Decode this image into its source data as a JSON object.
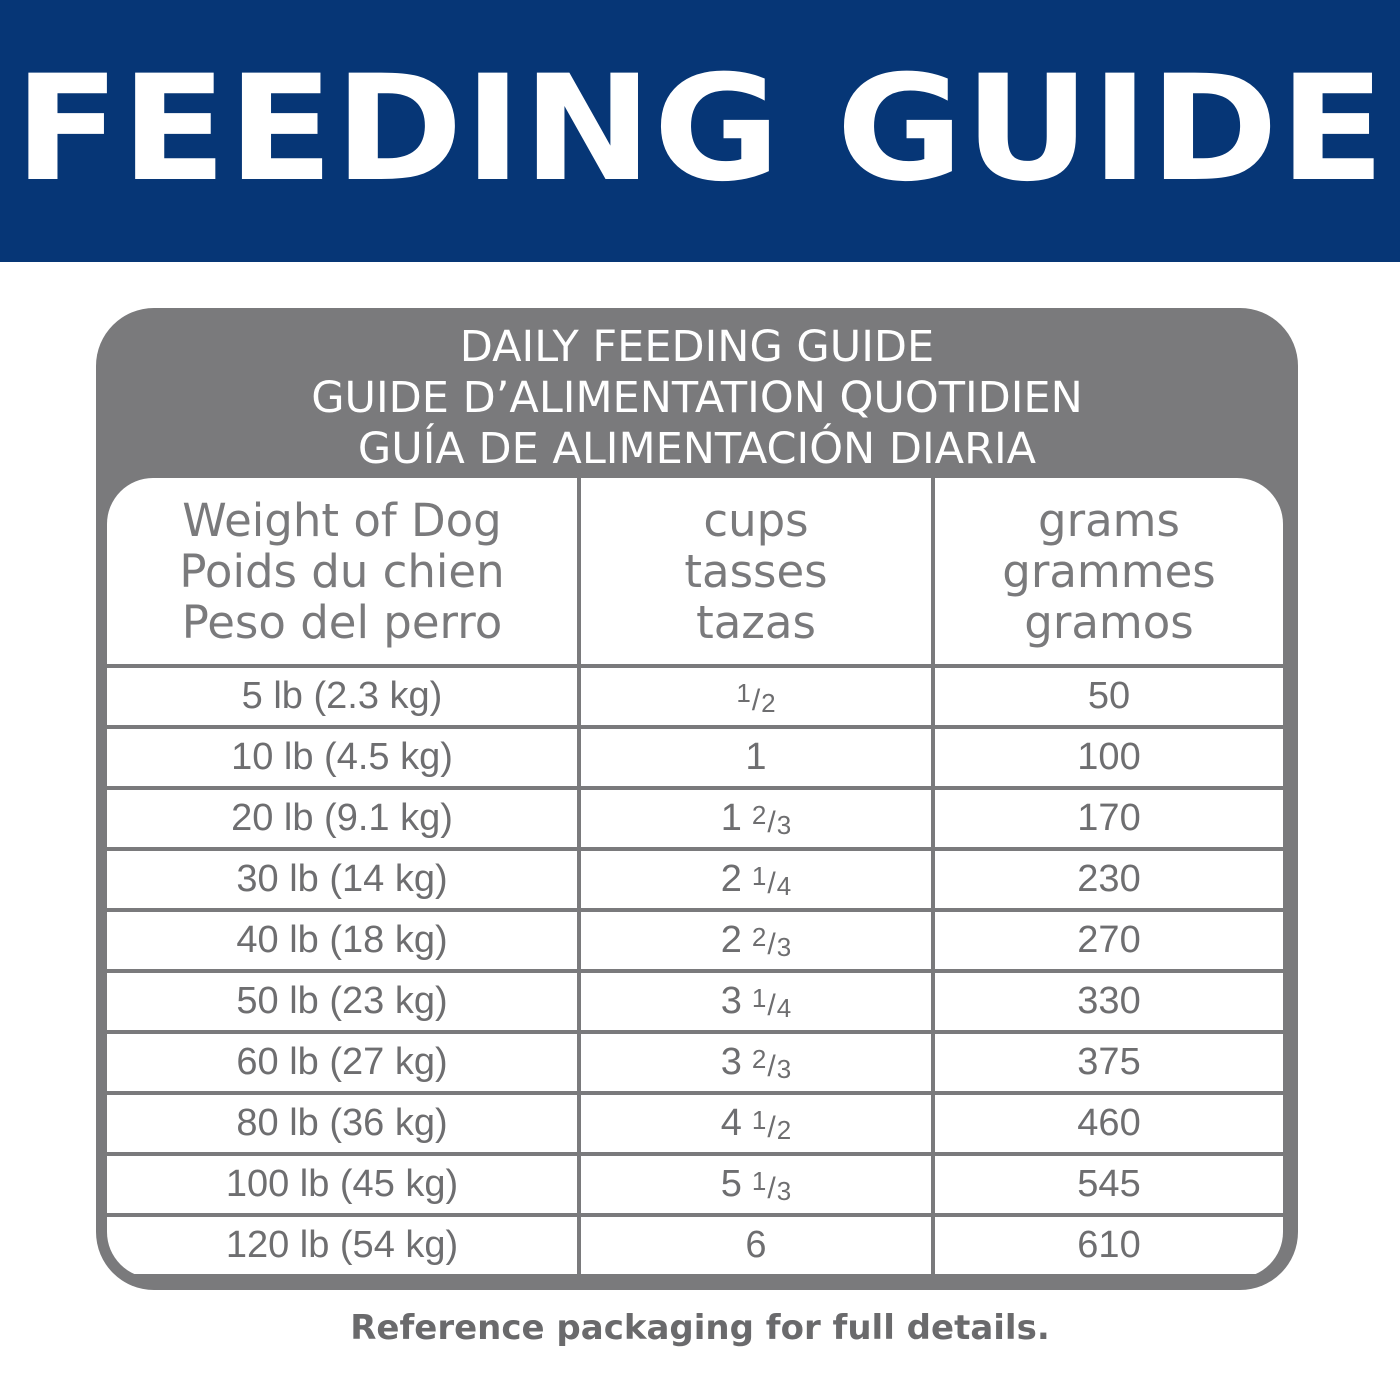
{
  "banner": {
    "title": "FEEDING GUIDE"
  },
  "panel": {
    "titles": [
      "DAILY FEEDING GUIDE",
      "GUIDE D’ALIMENTATION QUOTIDIEN",
      "GUÍA DE ALIMENTACIÓN DIARIA"
    ]
  },
  "table": {
    "headers": [
      [
        "Weight of Dog",
        "Poids du chien",
        "Peso del perro"
      ],
      [
        "cups",
        "tasses",
        "tazas"
      ],
      [
        "grams",
        "grammes",
        "gramos"
      ]
    ],
    "rows": [
      {
        "weight": "5 lb (2.3 kg)",
        "cups_whole": "",
        "cups_num": "1",
        "cups_den": "2",
        "grams": "50"
      },
      {
        "weight": "10 lb (4.5 kg)",
        "cups_whole": "1",
        "cups_num": "",
        "cups_den": "",
        "grams": "100"
      },
      {
        "weight": "20 lb (9.1 kg)",
        "cups_whole": "1",
        "cups_num": "2",
        "cups_den": "3",
        "grams": "170"
      },
      {
        "weight": "30 lb (14 kg)",
        "cups_whole": "2",
        "cups_num": "1",
        "cups_den": "4",
        "grams": "230"
      },
      {
        "weight": "40 lb (18 kg)",
        "cups_whole": "2",
        "cups_num": "2",
        "cups_den": "3",
        "grams": "270"
      },
      {
        "weight": "50 lb (23 kg)",
        "cups_whole": "3",
        "cups_num": "1",
        "cups_den": "4",
        "grams": "330"
      },
      {
        "weight": "60 lb (27 kg)",
        "cups_whole": "3",
        "cups_num": "2",
        "cups_den": "3",
        "grams": "375"
      },
      {
        "weight": "80 lb (36 kg)",
        "cups_whole": "4",
        "cups_num": "1",
        "cups_den": "2",
        "grams": "460"
      },
      {
        "weight": "100 lb (45 kg)",
        "cups_whole": "5",
        "cups_num": "1",
        "cups_den": "3",
        "grams": "545"
      },
      {
        "weight": "120 lb (54 kg)",
        "cups_whole": "6",
        "cups_num": "",
        "cups_den": "",
        "grams": "610"
      }
    ]
  },
  "footer": {
    "note": "Reference packaging for full details."
  },
  "colors": {
    "banner": "#063676",
    "panel": "#7a7a7c",
    "text_gray": "#6e6e70"
  }
}
